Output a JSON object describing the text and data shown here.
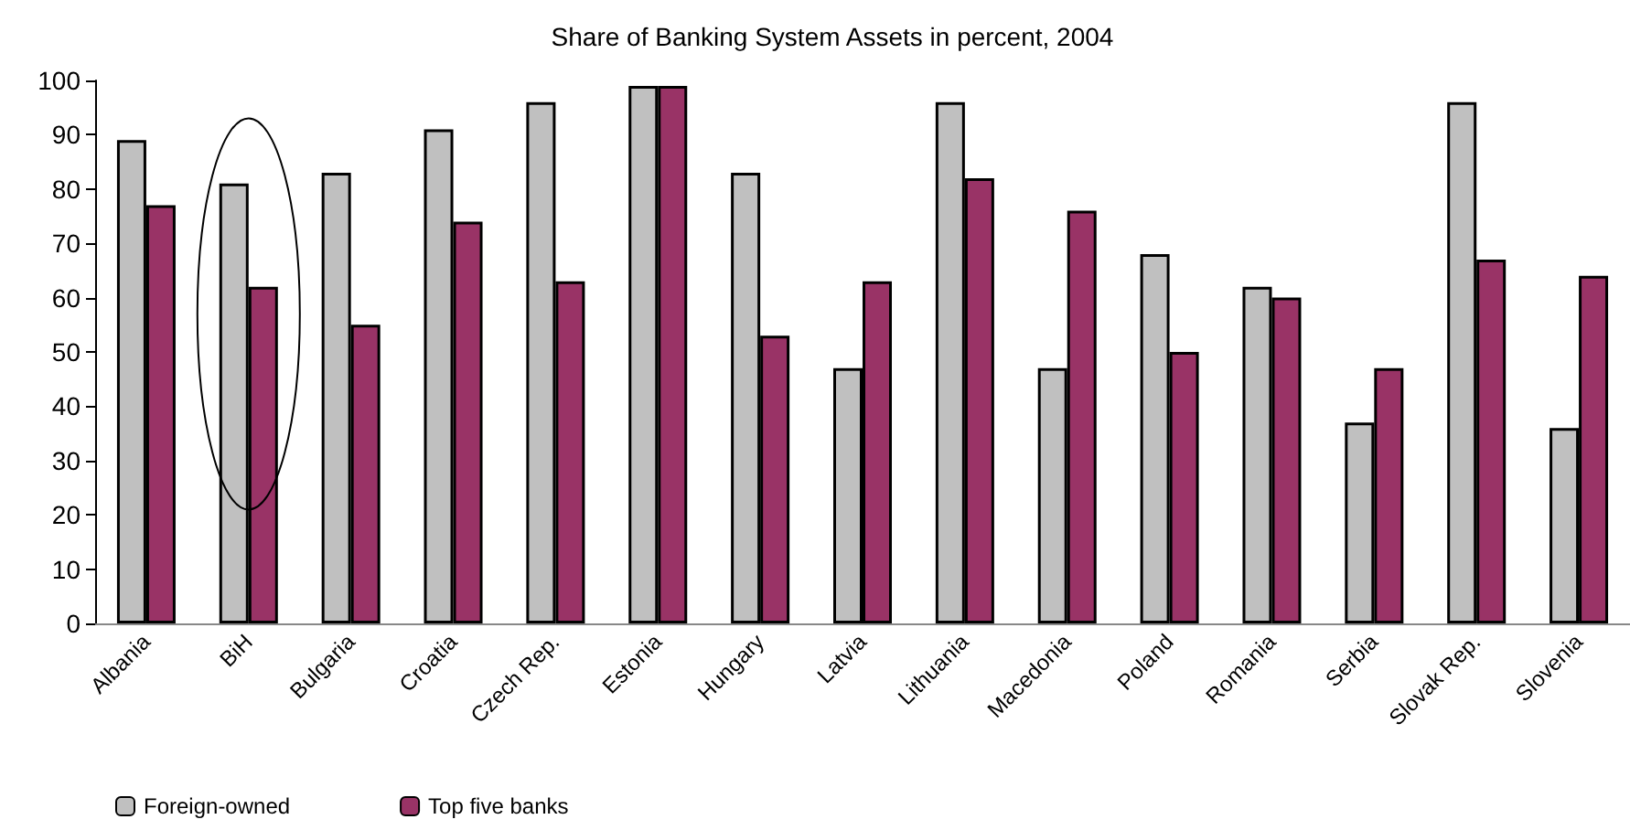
{
  "chart_data": {
    "type": "bar",
    "title": "Share of Banking System Assets in percent, 2004",
    "categories": [
      "Albania",
      "BiH",
      "Bulgaria",
      "Croatia",
      "Czech Rep.",
      "Estonia",
      "Hungary",
      "Latvia",
      "Lithuania",
      "Macedonia",
      "Poland",
      "Romania",
      "Serbia",
      "Slovak Rep.",
      "Slovenia"
    ],
    "series": [
      {
        "name": "Foreign-owned",
        "color": "#c0c0c0",
        "values": [
          89,
          81,
          83,
          91,
          96,
          99,
          83,
          47,
          96,
          47,
          68,
          62,
          37,
          96,
          36
        ]
      },
      {
        "name": "Top five banks",
        "color": "#993366",
        "values": [
          77,
          62,
          55,
          74,
          63,
          99,
          53,
          63,
          82,
          76,
          50,
          60,
          47,
          67,
          64
        ]
      }
    ],
    "ylim": [
      0,
      100
    ],
    "yticks": [
      0,
      10,
      20,
      30,
      40,
      50,
      60,
      70,
      80,
      90,
      100
    ],
    "grid": false,
    "legend": "bottom left"
  }
}
